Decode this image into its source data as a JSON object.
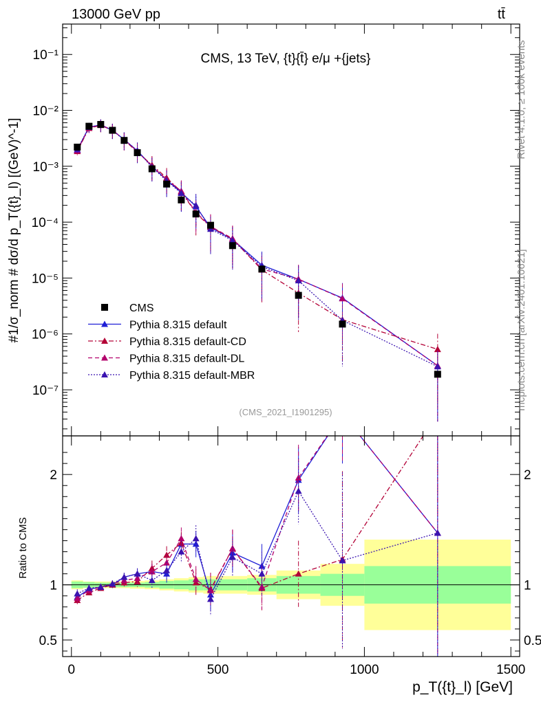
{
  "header": {
    "left": "13000 GeV pp",
    "right": "tt̄"
  },
  "side_text": {
    "rivet": "Rivet 4.1.0, ≥ 100k events",
    "mcplots": "mcplots.cern.ch [arXiv:2401.10621]"
  },
  "colors": {
    "data": "#000000",
    "default": "#1f1fd6",
    "cd": "#b30036",
    "dl": "#b3006b",
    "mbr": "#3a13b0",
    "band_inner": "#99ff99",
    "band_outer": "#ffff99"
  },
  "chart_data": [
    {
      "type": "line",
      "title": "CMS, 13 TeV, {t}{t̄} e/μ +{jets}",
      "watermark": "(CMS_2021_I1901295)",
      "ylabel": "#1/σ_norm # dσ/d p_T({t}_l) [(GeV)^-1]",
      "yscale": "log",
      "ylim": [
        1.5e-08,
        0.35
      ],
      "xlim": [
        -30,
        1530
      ],
      "yticks": [
        {
          "v": 1e-07,
          "label": "10⁻⁷"
        },
        {
          "v": 1e-06,
          "label": "10⁻⁶"
        },
        {
          "v": 1e-05,
          "label": "10⁻⁵"
        },
        {
          "v": 0.0001,
          "label": "10⁻⁴"
        },
        {
          "v": 0.001,
          "label": "10⁻³"
        },
        {
          "v": 0.01,
          "label": "10⁻²"
        },
        {
          "v": 0.1,
          "label": "10⁻¹"
        }
      ],
      "x": [
        20,
        60,
        100,
        140,
        180,
        225,
        275,
        325,
        375,
        425,
        475,
        550,
        650,
        775,
        925,
        1250
      ],
      "data": [
        0.0022,
        0.0052,
        0.0056,
        0.0044,
        0.0029,
        0.00175,
        0.0009,
        0.00048,
        0.00025,
        0.00014,
        8.8e-05,
        3.8e-05,
        1.45e-05,
        4.9e-06,
        1.5e-06,
        1.9e-07
      ],
      "series": [
        {
          "name": "Pythia 8.315 default",
          "style": "solid",
          "color_key": "default",
          "values": [
            0.00195,
            0.005,
            0.0055,
            0.0044,
            0.003,
            0.0019,
            0.001,
            0.00057,
            0.00034,
            0.00019,
            8e-05,
            4.9e-05,
            1.7e-05,
            9.5e-06,
            4.4e-06,
            2.7e-07
          ]
        },
        {
          "name": "Pythia 8.315 default-CD",
          "style": "dashdot",
          "color_key": "cd",
          "values": [
            0.00185,
            0.0048,
            0.0054,
            0.0044,
            0.00295,
            0.0018,
            0.00105,
            0.00062,
            0.00035,
            0.000145,
            8.2e-05,
            5e-05,
            1.4e-05,
            5.4e-06,
            1.8e-06,
            5.3e-07
          ]
        },
        {
          "name": "Pythia 8.315 default-DL",
          "style": "dashed",
          "color_key": "dl",
          "values": [
            0.0019,
            0.0049,
            0.0055,
            0.00445,
            0.003,
            0.00185,
            0.001,
            0.00058,
            0.00036,
            0.00015,
            8.4e-05,
            5.1e-05,
            1.45e-05,
            9.6e-06,
            4.3e-06,
            2.7e-07
          ]
        },
        {
          "name": "Pythia 8.315 default-MBR",
          "style": "dotted",
          "color_key": "mbr",
          "values": [
            0.002,
            0.005,
            0.0055,
            0.0044,
            0.003,
            0.0019,
            0.00096,
            0.00055,
            0.00033,
            0.0002,
            7.5e-05,
            4.7e-05,
            1.6e-05,
            9e-06,
            1.75e-06,
            2.6e-07
          ]
        }
      ],
      "legend": [
        {
          "label": "CMS",
          "kind": "data"
        },
        {
          "label": "Pythia 8.315 default",
          "kind": "default"
        },
        {
          "label": "Pythia 8.315 default-CD",
          "kind": "cd"
        },
        {
          "label": "Pythia 8.315 default-DL",
          "kind": "dl"
        },
        {
          "label": "Pythia 8.315 default-MBR",
          "kind": "mbr"
        }
      ],
      "legend_position": "bottom-left"
    },
    {
      "type": "line",
      "title": "",
      "ylabel": "Ratio to CMS",
      "xlabel": "p_T({t}_l) [GeV]",
      "ylim": [
        0.35,
        2.35
      ],
      "xlim": [
        -30,
        1530
      ],
      "yticks": [
        {
          "v": 0.5,
          "label": "0.5"
        },
        {
          "v": 1,
          "label": "1"
        },
        {
          "v": 2,
          "label": "2"
        }
      ],
      "xticks": [
        {
          "v": 0,
          "label": "0"
        },
        {
          "v": 500,
          "label": "500"
        },
        {
          "v": 1000,
          "label": "1000"
        },
        {
          "v": 1500,
          "label": "1500"
        }
      ],
      "bins": [
        0,
        40,
        80,
        120,
        160,
        200,
        250,
        300,
        350,
        400,
        450,
        500,
        600,
        700,
        850,
        1000,
        1500
      ],
      "band_inner": [
        0.03,
        0.025,
        0.02,
        0.02,
        0.02,
        0.02,
        0.025,
        0.035,
        0.04,
        0.05,
        0.05,
        0.05,
        0.06,
        0.08,
        0.1,
        0.17
      ],
      "band_outer": [
        0.04,
        0.03,
        0.03,
        0.03,
        0.03,
        0.035,
        0.04,
        0.05,
        0.06,
        0.07,
        0.08,
        0.08,
        0.09,
        0.13,
        0.19,
        0.41
      ],
      "x": [
        20,
        60,
        100,
        140,
        180,
        225,
        275,
        325,
        375,
        425,
        475,
        550,
        650,
        775,
        925,
        1250
      ],
      "series": [
        {
          "name": "Pythia 8.315 default",
          "color_key": "default",
          "style": "solid",
          "values": [
            0.89,
            0.96,
            0.98,
            1.0,
            1.07,
            1.1,
            1.12,
            1.1,
            1.37,
            1.37,
            0.91,
            1.29,
            1.17,
            1.95,
            2.9,
            1.47
          ]
        },
        {
          "name": "Pythia 8.315 default-CD",
          "color_key": "cd",
          "style": "dashdot",
          "values": [
            0.86,
            0.93,
            0.97,
            1.0,
            1.02,
            1.03,
            1.15,
            1.27,
            1.38,
            1.02,
            0.96,
            1.33,
            0.97,
            1.1,
            1.23,
            2.8
          ]
        },
        {
          "name": "Pythia 8.315 default-DL",
          "color_key": "dl",
          "style": "dashed",
          "values": [
            0.88,
            0.95,
            0.98,
            1.01,
            1.04,
            1.06,
            1.12,
            1.2,
            1.42,
            1.05,
            0.95,
            1.33,
            0.98,
            1.97,
            2.9,
            1.47
          ]
        },
        {
          "name": "Pythia 8.315 default-MBR",
          "color_key": "mbr",
          "style": "dotted",
          "values": [
            0.92,
            0.97,
            0.98,
            1.01,
            1.07,
            1.1,
            1.04,
            1.13,
            1.3,
            1.42,
            0.87,
            1.25,
            1.1,
            1.85,
            1.22,
            1.47
          ]
        }
      ],
      "errors": [
        0.04,
        0.03,
        0.03,
        0.03,
        0.04,
        0.05,
        0.07,
        0.08,
        0.1,
        0.12,
        0.15,
        0.17,
        0.2,
        0.3,
        0.8,
        1.2
      ]
    }
  ]
}
